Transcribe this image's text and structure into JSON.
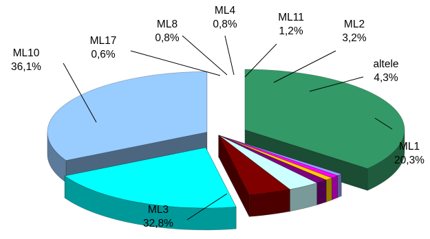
{
  "chart_data": {
    "type": "pie",
    "style": "3d-exploded",
    "title": "",
    "legend": "none",
    "slices": [
      {
        "name": "ML10",
        "value_label": "36,1%",
        "value": 36.1,
        "color": "#339966"
      },
      {
        "name": "ML17",
        "value_label": "0,6%",
        "value": 0.6,
        "color": "#9999ff"
      },
      {
        "name": "ML8",
        "value_label": "0,8%",
        "value": 0.8,
        "color": "#ff00ff"
      },
      {
        "name": "ML4",
        "value_label": "0,8%",
        "value": 0.8,
        "color": "#ffcc00"
      },
      {
        "name": "ML11",
        "value_label": "1,2%",
        "value": 1.2,
        "color": "#800080"
      },
      {
        "name": "ML2",
        "value_label": "3,2%",
        "value": 3.2,
        "color": "#ccffff"
      },
      {
        "name": "altele",
        "value_label": "4,3%",
        "value": 4.3,
        "color": "#800000"
      },
      {
        "name": "ML1",
        "value_label": "20,3%",
        "value": 20.3,
        "color": "#00ffff"
      },
      {
        "name": "ML3",
        "value_label": "32,8%",
        "value": 32.8,
        "color": "#99ccff"
      }
    ]
  }
}
